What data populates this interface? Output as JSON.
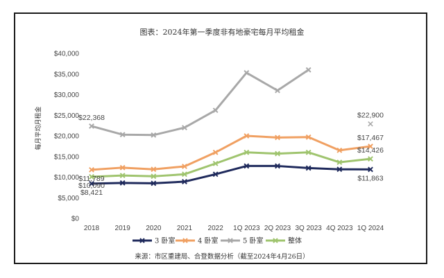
{
  "chart_data": {
    "type": "line",
    "title": "图表：2024年第一季度非有地豪宅每月平均租金",
    "ylabel": "每月平均月租金",
    "ylim": [
      0,
      40000
    ],
    "yticks": [
      "$0",
      "$5,000",
      "$10,000",
      "$15,000",
      "$20,000",
      "$25,000",
      "$30,000",
      "$35,000",
      "$40,000"
    ],
    "categories": [
      "2018",
      "2019",
      "2020",
      "2021",
      "2022",
      "1Q 2023",
      "2Q 2023",
      "3Q 2023",
      "4Q 2023",
      "1Q 2024"
    ],
    "grid": false,
    "legend": "bottom",
    "series": [
      {
        "name": "3 卧室",
        "color": "#1f2a5c",
        "marker": "x",
        "values": [
          8421,
          8600,
          8500,
          8900,
          10700,
          12700,
          12700,
          12200,
          11900,
          11863
        ]
      },
      {
        "name": "4 卧室",
        "color": "#f0a062",
        "marker": "x",
        "values": [
          11789,
          12300,
          11900,
          12600,
          16000,
          20000,
          19600,
          19700,
          16500,
          17467
        ]
      },
      {
        "name": "5 卧室",
        "color": "#a8a8a8",
        "marker": "x",
        "values": [
          22368,
          20300,
          20200,
          22000,
          26200,
          35300,
          31000,
          36000,
          null,
          22900
        ]
      },
      {
        "name": "整体",
        "color": "#9fc46e",
        "marker": "x",
        "values": [
          10090,
          10400,
          10200,
          10700,
          13300,
          16000,
          15700,
          16000,
          13600,
          14426
        ]
      }
    ],
    "annotations": [
      {
        "text": "$22,368",
        "series": 2,
        "index": 0,
        "pos": "above"
      },
      {
        "text": "$11,789",
        "series": 1,
        "index": 0,
        "pos": "below"
      },
      {
        "text": "$10,090",
        "series": 3,
        "index": 0,
        "pos": "below"
      },
      {
        "text": "$8,421",
        "series": 0,
        "index": 0,
        "pos": "below"
      },
      {
        "text": "$22,900",
        "series": 2,
        "index": 9,
        "pos": "above"
      },
      {
        "text": "$17,467",
        "series": 1,
        "index": 9,
        "pos": "above"
      },
      {
        "text": "$14,426",
        "series": 3,
        "index": 9,
        "pos": "above"
      },
      {
        "text": "$11,863",
        "series": 0,
        "index": 9,
        "pos": "below"
      }
    ]
  },
  "source": "来源：市区重建局、合登数据分析（截至2024年4月26日）"
}
